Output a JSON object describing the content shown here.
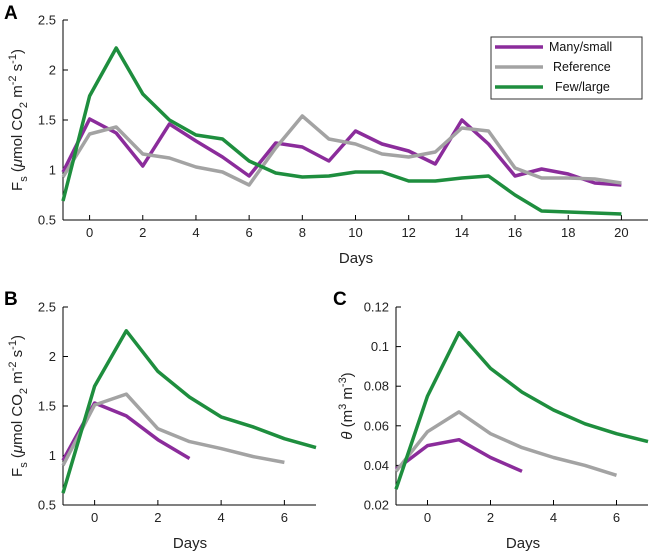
{
  "colors": {
    "many_small": "#8B2C9B",
    "reference": "#A3A3A3",
    "few_large": "#1E8E3E"
  },
  "chart_data": [
    {
      "id": "A",
      "type": "line",
      "panel_label": "A",
      "title": "",
      "xlabel": "Days",
      "ylabel": {
        "prefix": "F",
        "sub": "s",
        "unit_open": " (",
        "mu": "μ",
        "unit_text": "mol CO",
        "co2_sub": "2",
        "m": " m",
        "m_sup": "-2",
        "s": " s",
        "s_sup": "-1",
        "close": ")"
      },
      "xlim": [
        -1,
        21
      ],
      "ylim": [
        0.5,
        2.5
      ],
      "xticks": [
        0,
        2,
        4,
        6,
        8,
        10,
        12,
        14,
        16,
        18,
        20
      ],
      "yticks": [
        0.5,
        1,
        1.5,
        2,
        2.5
      ],
      "ytick_labels": [
        "0.5",
        "1",
        "1.5",
        "2",
        "2.5"
      ],
      "legend": {
        "placement": "top-right",
        "entries": [
          "Many/small",
          "Reference",
          "Few/large"
        ]
      },
      "series": [
        {
          "name": "Many/small",
          "color_key": "many_small",
          "x": [
            -1,
            0,
            1,
            2,
            3,
            4,
            5,
            6,
            7,
            8,
            9,
            10,
            11,
            12,
            13,
            14,
            15,
            16,
            17,
            18,
            19,
            20
          ],
          "y": [
            0.98,
            1.51,
            1.37,
            1.04,
            1.46,
            1.29,
            1.13,
            0.94,
            1.27,
            1.23,
            1.09,
            1.39,
            1.26,
            1.19,
            1.06,
            1.5,
            1.26,
            0.94,
            1.01,
            0.96,
            0.87,
            0.85
          ]
        },
        {
          "name": "Reference",
          "color_key": "reference",
          "x": [
            -1,
            0,
            1,
            2,
            3,
            4,
            5,
            6,
            7,
            8,
            9,
            10,
            11,
            12,
            13,
            14,
            15,
            16,
            17,
            18,
            19,
            20
          ],
          "y": [
            0.93,
            1.36,
            1.43,
            1.16,
            1.12,
            1.03,
            0.98,
            0.85,
            1.22,
            1.54,
            1.31,
            1.26,
            1.16,
            1.13,
            1.18,
            1.42,
            1.39,
            1.02,
            0.92,
            0.92,
            0.91,
            0.87
          ]
        },
        {
          "name": "Few/large",
          "color_key": "few_large",
          "x": [
            -1,
            0,
            1,
            2,
            3,
            4,
            5,
            6,
            7,
            8,
            9,
            10,
            11,
            12,
            13,
            14,
            15,
            16,
            17,
            18,
            19,
            20
          ],
          "y": [
            0.69,
            1.74,
            2.22,
            1.76,
            1.5,
            1.35,
            1.31,
            1.09,
            0.97,
            0.93,
            0.94,
            0.98,
            0.98,
            0.89,
            0.89,
            0.92,
            0.94,
            0.75,
            0.59,
            0.58,
            0.57,
            0.56
          ]
        }
      ]
    },
    {
      "id": "B",
      "type": "line",
      "panel_label": "B",
      "title": "",
      "xlabel": "Days",
      "ylabel": {
        "prefix": "F",
        "sub": "s",
        "unit_open": " (",
        "mu": "μ",
        "unit_text": "mol CO",
        "co2_sub": "2",
        "m": " m",
        "m_sup": "-2",
        "s": " s",
        "s_sup": "-1",
        "close": ")"
      },
      "xlim": [
        -1,
        7
      ],
      "ylim": [
        0.5,
        2.5
      ],
      "xticks": [
        0,
        2,
        4,
        6
      ],
      "yticks": [
        0.5,
        1,
        1.5,
        2,
        2.5
      ],
      "ytick_labels": [
        "0.5",
        "1",
        "1.5",
        "2",
        "2.5"
      ],
      "series": [
        {
          "name": "Many/small",
          "color_key": "many_small",
          "x": [
            -1,
            0,
            1,
            2,
            3
          ],
          "y": [
            0.95,
            1.53,
            1.4,
            1.16,
            0.97
          ]
        },
        {
          "name": "Reference",
          "color_key": "reference",
          "x": [
            -1,
            0,
            1,
            2,
            3,
            4,
            5,
            6
          ],
          "y": [
            0.9,
            1.51,
            1.62,
            1.27,
            1.14,
            1.07,
            0.99,
            0.93
          ]
        },
        {
          "name": "Few/large",
          "color_key": "few_large",
          "x": [
            -1,
            0,
            1,
            2,
            3,
            4,
            5,
            6,
            7
          ],
          "y": [
            0.62,
            1.7,
            2.26,
            1.85,
            1.59,
            1.39,
            1.29,
            1.17,
            1.08
          ]
        }
      ]
    },
    {
      "id": "C",
      "type": "line",
      "panel_label": "C",
      "title": "",
      "xlabel": "Days",
      "ylabel": {
        "prefix": "θ",
        "unit_open": " (m",
        "m_sup": "3",
        "mid": " m",
        "m2_sup": "-3",
        "close": ")"
      },
      "xlim": [
        -1,
        7
      ],
      "ylim": [
        0.02,
        0.12
      ],
      "xticks": [
        0,
        2,
        4,
        6
      ],
      "yticks": [
        0.02,
        0.04,
        0.06,
        0.08,
        0.1,
        0.12
      ],
      "ytick_labels": [
        "0.02",
        "0.04",
        "0.06",
        "0.08",
        "0.1",
        "0.12"
      ],
      "series": [
        {
          "name": "Many/small",
          "color_key": "many_small",
          "x": [
            -1,
            0,
            1,
            2,
            3
          ],
          "y": [
            0.038,
            0.05,
            0.053,
            0.044,
            0.037
          ]
        },
        {
          "name": "Reference",
          "color_key": "reference",
          "x": [
            -1,
            0,
            1,
            2,
            3,
            4,
            5,
            6
          ],
          "y": [
            0.037,
            0.057,
            0.067,
            0.056,
            0.049,
            0.044,
            0.04,
            0.035
          ]
        },
        {
          "name": "Few/large",
          "color_key": "few_large",
          "x": [
            -1,
            0,
            1,
            2,
            3,
            4,
            5,
            6,
            7
          ],
          "y": [
            0.028,
            0.075,
            0.107,
            0.089,
            0.077,
            0.068,
            0.061,
            0.056,
            0.052
          ]
        }
      ]
    }
  ]
}
